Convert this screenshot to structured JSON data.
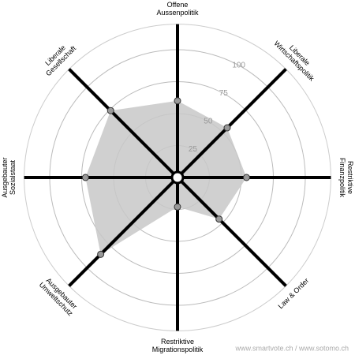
{
  "chart_data": {
    "type": "radar",
    "categories": [
      [
        "Offene",
        "Aussenpolitik"
      ],
      [
        "Liberale",
        "Wirtschaftspolitik"
      ],
      [
        "Restriktive",
        "Finanzpolitik"
      ],
      [
        "Law & Order"
      ],
      [
        "Restriktive",
        "Migrationspolitik"
      ],
      [
        "Ausgebauter",
        "Umweltschutz"
      ],
      [
        "Ausgebauter",
        "Sozialstaat"
      ],
      [
        "Liberale",
        "Gesellschaft"
      ]
    ],
    "values": [
      60,
      55,
      54,
      46,
      23,
      85,
      72,
      74
    ],
    "color": "#c8c8c8",
    "ylim": [
      0,
      100
    ],
    "yticks": [
      25,
      50,
      75,
      100
    ],
    "grid": true,
    "footer": "www.smartvote.ch / www.sotomo.ch"
  }
}
